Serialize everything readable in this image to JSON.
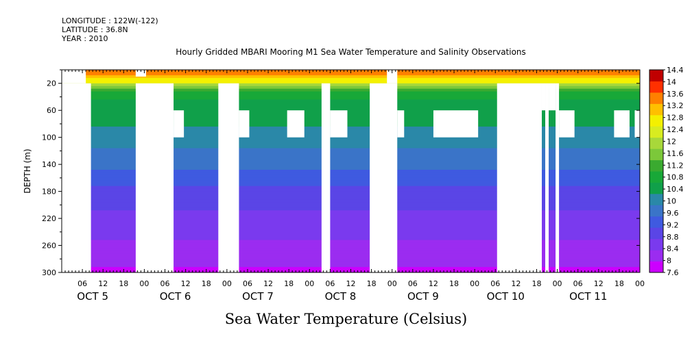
{
  "header": {
    "longitude": "LONGITUDE : 122W(-122)",
    "latitude": "LATITUDE : 36.8N",
    "year": "YEAR : 2010"
  },
  "chart_data": {
    "type": "heatmap",
    "title": "Hourly Gridded MBARI Mooring M1 Sea Water Temperature and Salinity Observations",
    "variable_label": "Sea Water Temperature (Celsius)",
    "ylabel": "DEPTH (m)",
    "xlabel": "",
    "x_range_hours": [
      0,
      168
    ],
    "y_range": [
      0,
      300
    ],
    "y_inverted": true,
    "y_ticks": [
      20,
      60,
      100,
      140,
      180,
      220,
      260,
      300
    ],
    "y_tick_labels": [
      "20",
      "60",
      "100",
      "140",
      "180",
      "220",
      "260",
      "300"
    ],
    "x_ticks_hours": [
      6,
      12,
      18,
      24,
      30,
      36,
      42,
      48,
      54,
      60,
      66,
      72,
      78,
      84,
      90,
      96,
      102,
      108,
      114,
      120,
      126,
      132,
      138,
      144,
      150,
      156,
      162,
      168
    ],
    "x_tick_labels": [
      "06",
      "12",
      "18",
      "00",
      "06",
      "12",
      "18",
      "00",
      "06",
      "12",
      "18",
      "00",
      "06",
      "12",
      "18",
      "00",
      "06",
      "12",
      "18",
      "00",
      "06",
      "12",
      "18",
      "00",
      "06",
      "12",
      "18",
      "00"
    ],
    "day_labels": [
      {
        "text": "OCT  5",
        "hour": 9
      },
      {
        "text": "OCT  6",
        "hour": 33
      },
      {
        "text": "OCT  7",
        "hour": 57
      },
      {
        "text": "OCT  8",
        "hour": 81
      },
      {
        "text": "OCT  9",
        "hour": 105
      },
      {
        "text": "OCT 10",
        "hour": 129
      },
      {
        "text": "OCT 11",
        "hour": 153
      }
    ],
    "colorbar": {
      "range": [
        7.6,
        14.4
      ],
      "levels": [
        7.6,
        8,
        8.4,
        8.8,
        9.2,
        9.6,
        10,
        10.4,
        10.8,
        11.2,
        11.6,
        12,
        12.4,
        12.8,
        13.2,
        13.6,
        14,
        14.4
      ],
      "labels": [
        "7.6",
        "8",
        "8.4",
        "8.8",
        "9.2",
        "9.6",
        "10",
        "10.4",
        "10.8",
        "11.2",
        "11.6",
        "12",
        "12.4",
        "12.8",
        "13.2",
        "13.6",
        "14",
        "14.4"
      ],
      "colors": [
        "#cc00ff",
        "#9b2cf0",
        "#7a3aee",
        "#5a45e6",
        "#3f5ae0",
        "#3a74c8",
        "#2a88a8",
        "#10a04a",
        "#18a838",
        "#3aaa30",
        "#7cc83a",
        "#a8d83a",
        "#d8ec20",
        "#f4f000",
        "#ffc000",
        "#ff8000",
        "#ff3000",
        "#c00000"
      ]
    },
    "temperature_profile": [
      {
        "depth": 0,
        "value": 14.0
      },
      {
        "depth": 8,
        "value": 13.6
      },
      {
        "depth": 18,
        "value": 12.8
      },
      {
        "depth": 28,
        "value": 11.4
      },
      {
        "depth": 45,
        "value": 10.8
      },
      {
        "depth": 75,
        "value": 10.5
      },
      {
        "depth": 100,
        "value": 10.2
      },
      {
        "depth": 140,
        "value": 9.7
      },
      {
        "depth": 180,
        "value": 9.1
      },
      {
        "depth": 220,
        "value": 8.7
      },
      {
        "depth": 260,
        "value": 8.3
      },
      {
        "depth": 300,
        "value": 7.9
      }
    ],
    "missing_data": [
      {
        "hour_start": 0,
        "hour_end": 7,
        "depth_start": 0,
        "depth_end": 20
      },
      {
        "hour_start": 0,
        "hour_end": 8.5,
        "depth_start": 20,
        "depth_end": 300
      },
      {
        "hour_start": 21.5,
        "hour_end": 24.5,
        "depth_start": 0,
        "depth_end": 10
      },
      {
        "hour_start": 21.5,
        "hour_end": 32.5,
        "depth_start": 20,
        "depth_end": 300
      },
      {
        "hour_start": 32.5,
        "hour_end": 35.5,
        "depth_start": 60,
        "depth_end": 100
      },
      {
        "hour_start": 45.5,
        "hour_end": 51.5,
        "depth_start": 20,
        "depth_end": 300
      },
      {
        "hour_start": 51.5,
        "hour_end": 54.5,
        "depth_start": 60,
        "depth_end": 100
      },
      {
        "hour_start": 65.5,
        "hour_end": 70.5,
        "depth_start": 60,
        "depth_end": 100
      },
      {
        "hour_start": 75.5,
        "hour_end": 78,
        "depth_start": 20,
        "depth_end": 300
      },
      {
        "hour_start": 78,
        "hour_end": 83,
        "depth_start": 60,
        "depth_end": 100
      },
      {
        "hour_start": 89.5,
        "hour_end": 97.5,
        "depth_start": 20,
        "depth_end": 300
      },
      {
        "hour_start": 94.5,
        "hour_end": 97.5,
        "depth_start": 0,
        "depth_end": 20
      },
      {
        "hour_start": 97.5,
        "hour_end": 99.5,
        "depth_start": 60,
        "depth_end": 100
      },
      {
        "hour_start": 108,
        "hour_end": 121,
        "depth_start": 60,
        "depth_end": 100
      },
      {
        "hour_start": 126.5,
        "hour_end": 139.5,
        "depth_start": 20,
        "depth_end": 300
      },
      {
        "hour_start": 139.5,
        "hour_end": 140.5,
        "depth_start": 20,
        "depth_end": 60
      },
      {
        "hour_start": 140.5,
        "hour_end": 141.5,
        "depth_start": 20,
        "depth_end": 300
      },
      {
        "hour_start": 141.5,
        "hour_end": 143.5,
        "depth_start": 20,
        "depth_end": 60
      },
      {
        "hour_start": 143.5,
        "hour_end": 144.5,
        "depth_start": 20,
        "depth_end": 300
      },
      {
        "hour_start": 144.5,
        "hour_end": 149,
        "depth_start": 60,
        "depth_end": 100
      },
      {
        "hour_start": 160.5,
        "hour_end": 165,
        "depth_start": 60,
        "depth_end": 100
      },
      {
        "hour_start": 166.5,
        "hour_end": 168,
        "depth_start": 60,
        "depth_end": 100
      }
    ]
  }
}
